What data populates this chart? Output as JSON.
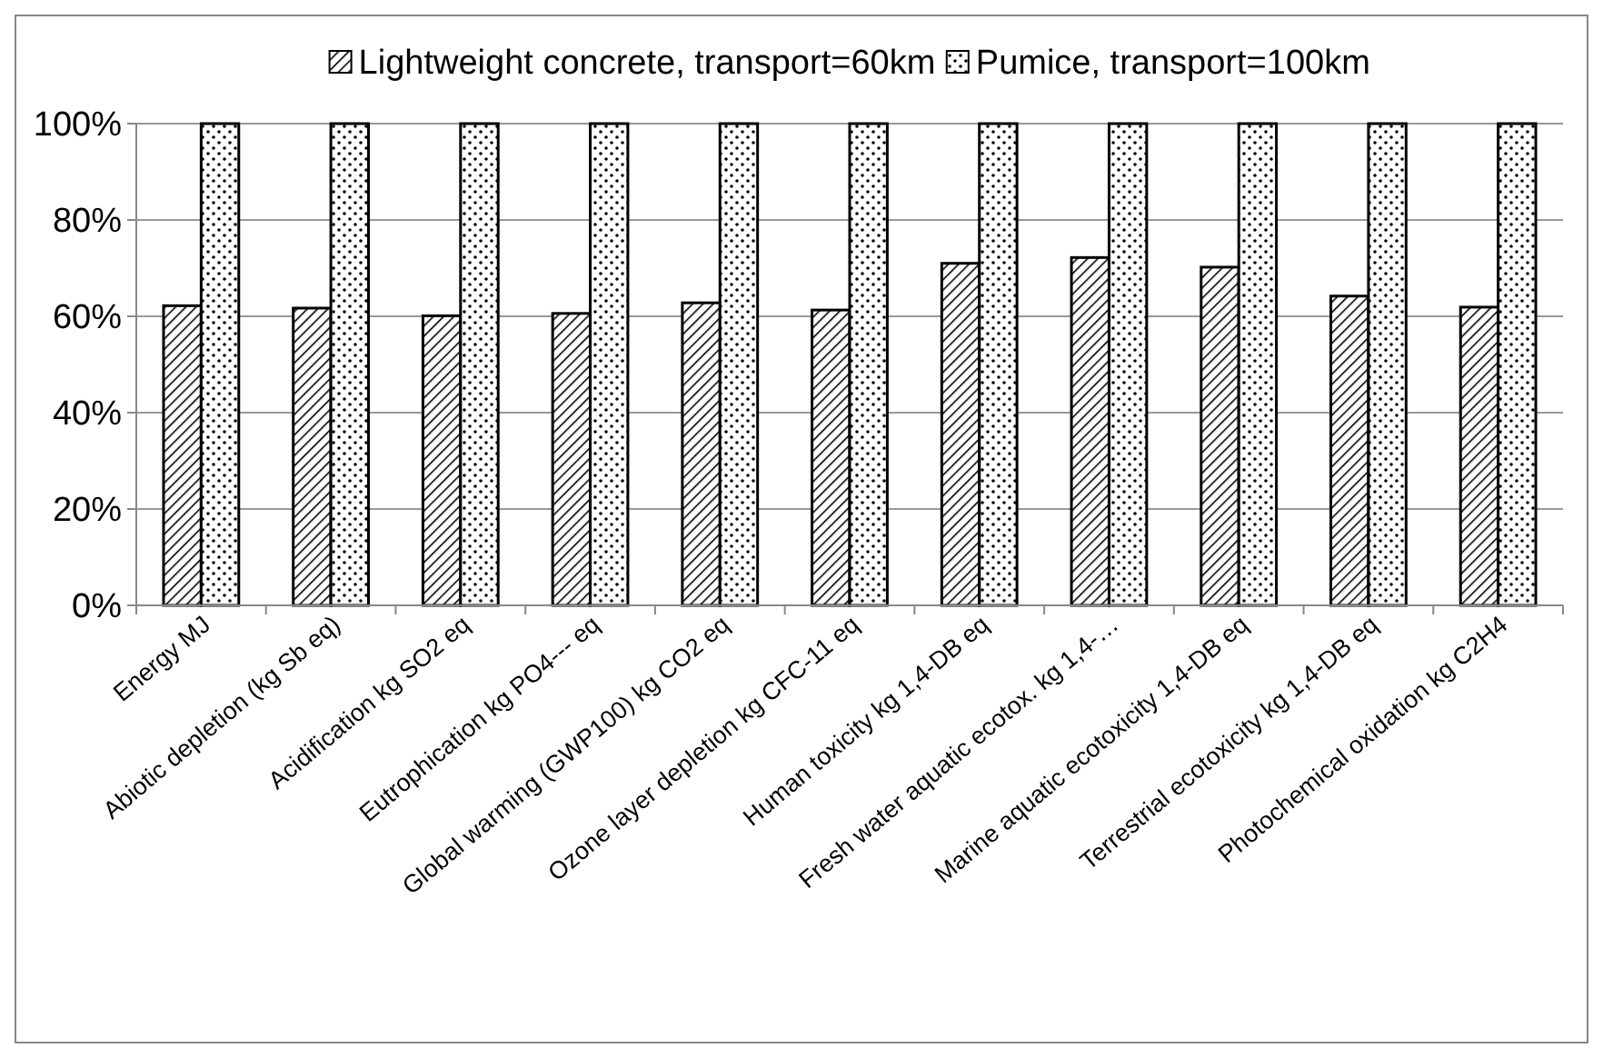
{
  "chart_data": {
    "type": "bar",
    "categories": [
      "Energy MJ",
      "Abiotic depletion (kg Sb eq)",
      "Acidification kg SO2 eq",
      "Eutrophication kg PO4--- eq",
      "Global warming (GWP100) kg CO2 eq",
      "Ozone layer depletion kg CFC-11 eq",
      "Human toxicity kg 1,4-DB eq",
      "Fresh water aquatic ecotox. kg 1,4-…",
      "Marine aquatic ecotoxicity 1,4-DB eq",
      "Terrestrial ecotoxicity kg 1,4-DB eq",
      "Photochemical oxidation kg C2H4"
    ],
    "series": [
      {
        "name": "Lightweight concrete, transport=60km",
        "color": "#000000",
        "values": [
          62.2,
          61.7,
          60.1,
          60.6,
          62.8,
          61.3,
          71.0,
          72.2,
          70.2,
          64.2,
          61.9
        ]
      },
      {
        "name": "Pumice, transport=100km",
        "color": "#000000",
        "values": [
          100,
          100,
          100,
          100,
          100,
          100,
          100,
          100,
          100,
          100,
          100
        ]
      }
    ],
    "ylim": [
      0,
      100
    ],
    "yticks": [
      {
        "value": 0,
        "label": "0%"
      },
      {
        "value": 20,
        "label": "20%"
      },
      {
        "value": 40,
        "label": "40%"
      },
      {
        "value": 60,
        "label": "60%"
      },
      {
        "value": 80,
        "label": "80%"
      },
      {
        "value": 100,
        "label": "100%"
      }
    ],
    "grid": "y",
    "legend": "top"
  }
}
